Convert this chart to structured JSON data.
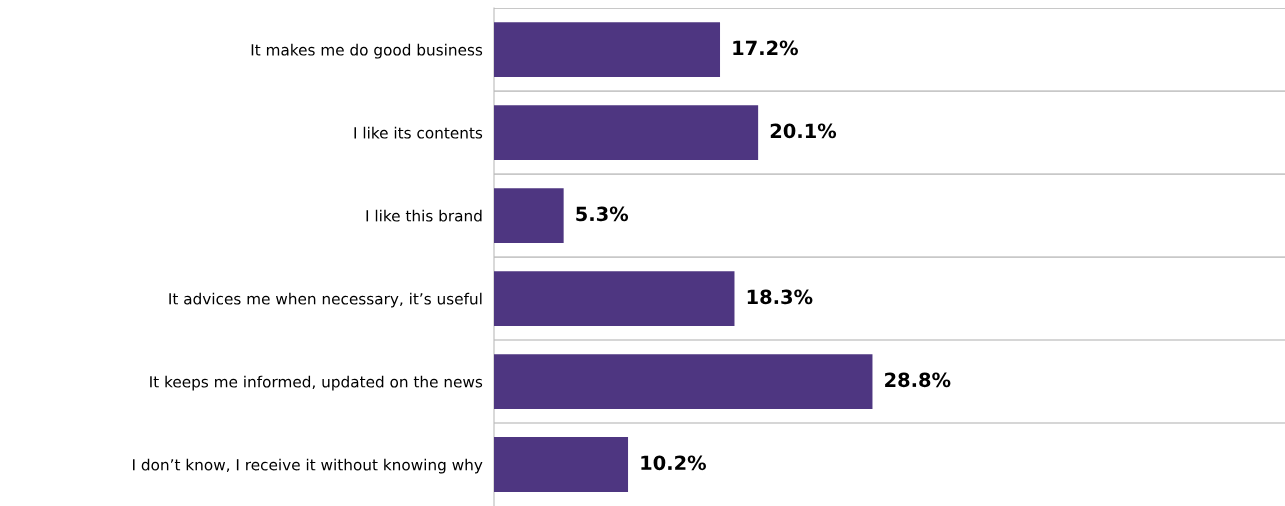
{
  "chart_data": {
    "type": "bar",
    "orientation": "horizontal",
    "categories": [
      "It makes me do good business",
      "I like its contents",
      "I like this brand",
      "It advices me when necessary, it’s useful",
      "It keeps me informed, updated on the news",
      "I don’t know, I receive it without knowing why"
    ],
    "values": [
      17.2,
      20.1,
      5.3,
      18.3,
      28.8,
      10.2
    ],
    "value_labels": [
      "17.2%",
      "20.1%",
      "5.3%",
      "18.3%",
      "28.8%",
      "10.2%"
    ],
    "color": "#4e3681",
    "grid": "y"
  }
}
